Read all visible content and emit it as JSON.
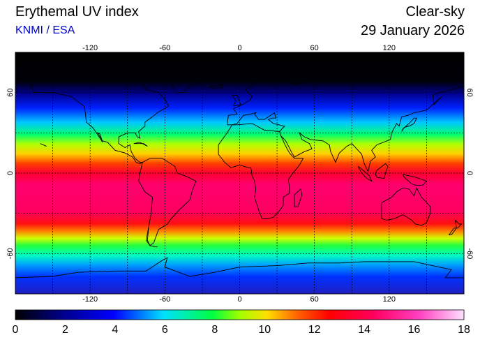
{
  "header": {
    "title": "Erythemal UV index",
    "subtitle": "KNMI / ESA",
    "mode": "Clear-sky",
    "date": "29 January 2026"
  },
  "colors": {
    "subtitle": "#0000d0",
    "coastline": "#000000",
    "grid": "#000000"
  },
  "map": {
    "projection": "equirectangular",
    "lon_range": [
      -180,
      180
    ],
    "lat_range": [
      -90,
      90
    ],
    "lon_ticks": [
      "-120",
      "-60",
      "0",
      "60",
      "120"
    ],
    "lat_ticks": [
      "60",
      "0",
      "-60"
    ],
    "grid": "dashed every 30 degrees"
  },
  "colorbar": {
    "range": [
      0,
      18
    ],
    "labels": [
      "0",
      "2",
      "4",
      "6",
      "8",
      "10",
      "12",
      "14",
      "16",
      "18"
    ]
  }
}
